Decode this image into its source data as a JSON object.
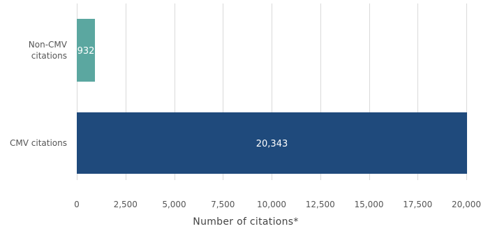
{
  "chart_data": {
    "type": "bar",
    "orientation": "horizontal",
    "categories": [
      "Non-CMV citations",
      "CMV citations"
    ],
    "category_lines": [
      [
        "Non-CMV",
        "citations"
      ],
      [
        "CMV citations"
      ]
    ],
    "values": [
      932,
      20343
    ],
    "value_labels": [
      "932",
      "20,343"
    ],
    "colors": [
      "#5ba7a0",
      "#1f4a7c"
    ],
    "xlabel": "Number of citations*",
    "xlim": [
      0,
      20000
    ],
    "xticks": [
      0,
      2500,
      5000,
      7500,
      10000,
      12500,
      15000,
      17500,
      20000
    ],
    "xtick_labels": [
      "0",
      "2,500",
      "5,000",
      "7,500",
      "10,000",
      "12,500",
      "15,000",
      "17,500",
      "20,000"
    ],
    "grid": "vertical",
    "legend": "none"
  }
}
